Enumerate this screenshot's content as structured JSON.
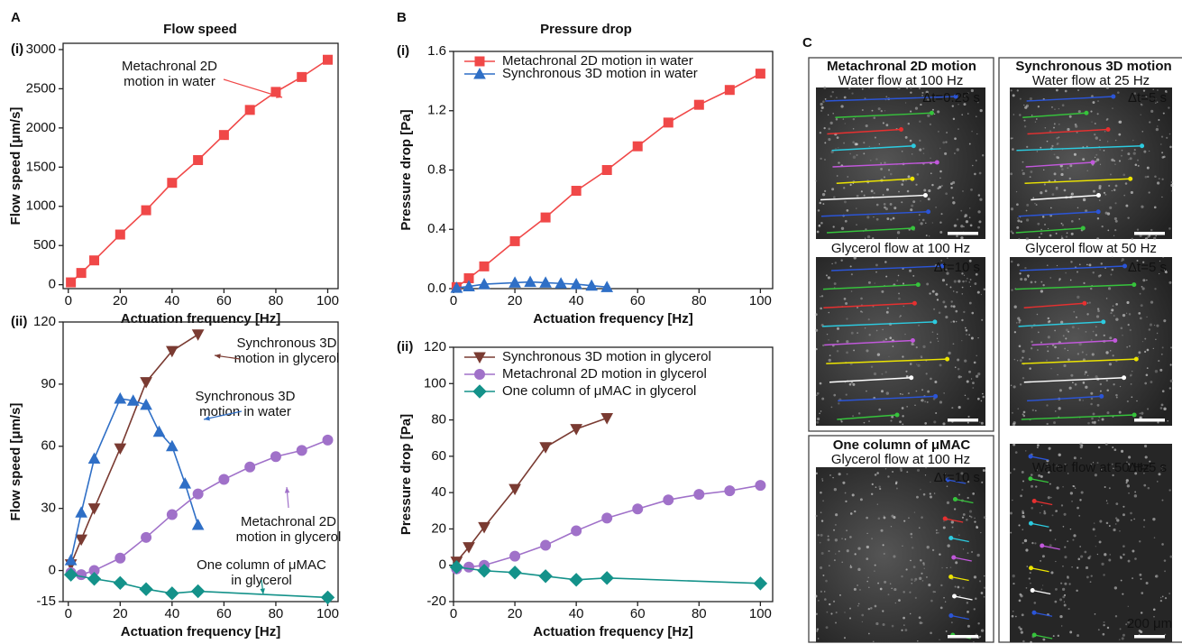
{
  "chart_data": [
    {
      "type": "line",
      "panel_label": "A",
      "subpanel_label": "(i)",
      "title": "Flow speed",
      "xlabel": "Actuation frequency [Hz]",
      "ylabel": "Flow speed [μm/s]",
      "xlim": [
        -2,
        104
      ],
      "ylim": [
        -50,
        3080
      ],
      "xticks": [
        0,
        20,
        40,
        60,
        80,
        100
      ],
      "yticks": [
        0,
        500,
        1000,
        1500,
        2000,
        2500,
        3000
      ],
      "grid": false,
      "series": [
        {
          "color": "#f04848",
          "marker": "square",
          "x": [
            1,
            5,
            10,
            20,
            30,
            40,
            50,
            60,
            70,
            80,
            90,
            100
          ],
          "values": [
            30,
            150,
            310,
            640,
            950,
            1300,
            1590,
            1910,
            2230,
            2460,
            2650,
            2870
          ]
        }
      ],
      "annotations": [
        {
          "lines": [
            "Metachronal 2D",
            "motion in water"
          ],
          "color": "#f04848"
        }
      ]
    },
    {
      "type": "line",
      "subpanel_label": "(ii)",
      "xlabel": "Actuation frequency [Hz]",
      "ylabel": "Flow speed [μm/s]",
      "xlim": [
        -2,
        104
      ],
      "ylim": [
        -15,
        120
      ],
      "xticks": [
        0,
        20,
        40,
        60,
        80,
        100
      ],
      "yticks": [
        -15,
        0,
        30,
        60,
        90,
        120
      ],
      "grid": false,
      "series": [
        {
          "color": "#7a3b32",
          "marker": "triangle-down",
          "x": [
            1,
            5,
            10,
            20,
            30,
            40,
            50
          ],
          "values": [
            3,
            15,
            30,
            59,
            91,
            106,
            114
          ]
        },
        {
          "color": "#2f6fc6",
          "marker": "triangle-up",
          "x": [
            1,
            5,
            10,
            20,
            25,
            30,
            35,
            40,
            45,
            50
          ],
          "values": [
            5,
            28,
            54,
            83,
            82,
            80,
            67,
            60,
            42,
            22
          ]
        },
        {
          "color": "#a071c9",
          "marker": "circle",
          "x": [
            1,
            5,
            10,
            20,
            30,
            40,
            50,
            60,
            70,
            80,
            90,
            100
          ],
          "values": [
            -1,
            -2,
            0,
            6,
            16,
            27,
            37,
            44,
            50,
            55,
            58,
            63
          ]
        },
        {
          "color": "#14928a",
          "marker": "diamond",
          "x": [
            1,
            10,
            20,
            30,
            40,
            50,
            100
          ],
          "values": [
            -2,
            -4,
            -6,
            -9,
            -11,
            -10,
            -13
          ]
        }
      ],
      "annotations": [
        {
          "lines": [
            "Synchronous 3D",
            "motion in glycerol"
          ],
          "color": "#7a3b32"
        },
        {
          "lines": [
            "Synchronous 3D",
            "motion in water"
          ],
          "color": "#2f6fc6"
        },
        {
          "lines": [
            "Metachronal 2D",
            "motion in glycerol"
          ],
          "color": "#a071c9"
        },
        {
          "lines": [
            "One column of μMAC",
            "in glycerol"
          ],
          "color": "#14928a"
        }
      ]
    },
    {
      "type": "line",
      "panel_label": "B",
      "subpanel_label": "(i)",
      "title": "Pressure drop",
      "xlabel": "Actuation frequency [Hz]",
      "ylabel": "Pressure drop [Pa]",
      "xlim": [
        0,
        104
      ],
      "ylim": [
        0,
        1.6
      ],
      "xticks": [
        0,
        20,
        40,
        60,
        80,
        100
      ],
      "yticks": [
        {
          "value": 0,
          "label": "0.0"
        },
        0.4,
        0.8,
        1.2,
        1.6
      ],
      "grid": false,
      "legend": "upper left",
      "series": [
        {
          "name": "Metachronal 2D motion in water",
          "color": "#f04848",
          "marker": "square",
          "x": [
            1,
            5,
            10,
            20,
            30,
            40,
            50,
            60,
            70,
            80,
            90,
            100
          ],
          "values": [
            0.01,
            0.07,
            0.15,
            0.32,
            0.48,
            0.66,
            0.8,
            0.96,
            1.12,
            1.24,
            1.34,
            1.45
          ]
        },
        {
          "name": "Synchronous 3D motion in water",
          "color": "#2f6fc6",
          "marker": "triangle-up",
          "x": [
            1,
            5,
            10,
            20,
            25,
            30,
            35,
            40,
            45,
            50
          ],
          "values": [
            0.005,
            0.015,
            0.03,
            0.04,
            0.045,
            0.04,
            0.035,
            0.03,
            0.02,
            0.01
          ]
        }
      ]
    },
    {
      "type": "line",
      "subpanel_label": "(ii)",
      "xlabel": "Actuation frequency [Hz]",
      "ylabel": "Pressure drop [Pa]",
      "xlim": [
        0,
        104
      ],
      "ylim": [
        -20,
        120
      ],
      "xticks": [
        0,
        20,
        40,
        60,
        80,
        100
      ],
      "yticks": [
        -20,
        0,
        20,
        40,
        60,
        80,
        100,
        120
      ],
      "grid": false,
      "legend": "upper left",
      "series": [
        {
          "name": "Synchronous 3D motion in glycerol",
          "color": "#7a3b32",
          "marker": "triangle-down",
          "x": [
            1,
            5,
            10,
            20,
            30,
            40,
            50
          ],
          "values": [
            2,
            10,
            21,
            42,
            65,
            75,
            81
          ]
        },
        {
          "name": "Metachronal 2D motion in glycerol",
          "color": "#a071c9",
          "marker": "circle",
          "x": [
            1,
            5,
            10,
            20,
            30,
            40,
            50,
            60,
            70,
            80,
            90,
            100
          ],
          "values": [
            -2,
            -1,
            0,
            5,
            11,
            19,
            26,
            31,
            36,
            39,
            41,
            44
          ]
        },
        {
          "name": "One column of μMAC in glycerol",
          "color": "#14928a",
          "marker": "diamond",
          "x": [
            1,
            10,
            20,
            30,
            40,
            50,
            100
          ],
          "values": [
            -1,
            -3,
            -4,
            -6,
            -8,
            -7,
            -10
          ]
        }
      ]
    }
  ],
  "panel_c": {
    "label": "C",
    "boxes": [
      {
        "title": "Metachronal 2D motion",
        "images": [
          {
            "caption": "Water flow at 100 Hz",
            "dt": "Δt=0.25 s"
          },
          {
            "caption": "Glycerol flow at 100 Hz",
            "dt": "Δt=10 s"
          }
        ]
      },
      {
        "title": "One column of μMAC",
        "images": [
          {
            "caption": "Glycerol flow at 100 Hz",
            "dt": "Δt=10 s"
          }
        ]
      },
      {
        "title": "Synchronous 3D motion",
        "images": [
          {
            "caption": "Water flow at 25 Hz",
            "dt": "Δt=5 s"
          },
          {
            "caption": "Glycerol flow at 50 Hz",
            "dt": "Δt=5 s"
          },
          {
            "caption": "Water flow at 50 Hz",
            "dt": "Δt=5 s"
          }
        ]
      }
    ],
    "scale_bar": "200 μm"
  }
}
